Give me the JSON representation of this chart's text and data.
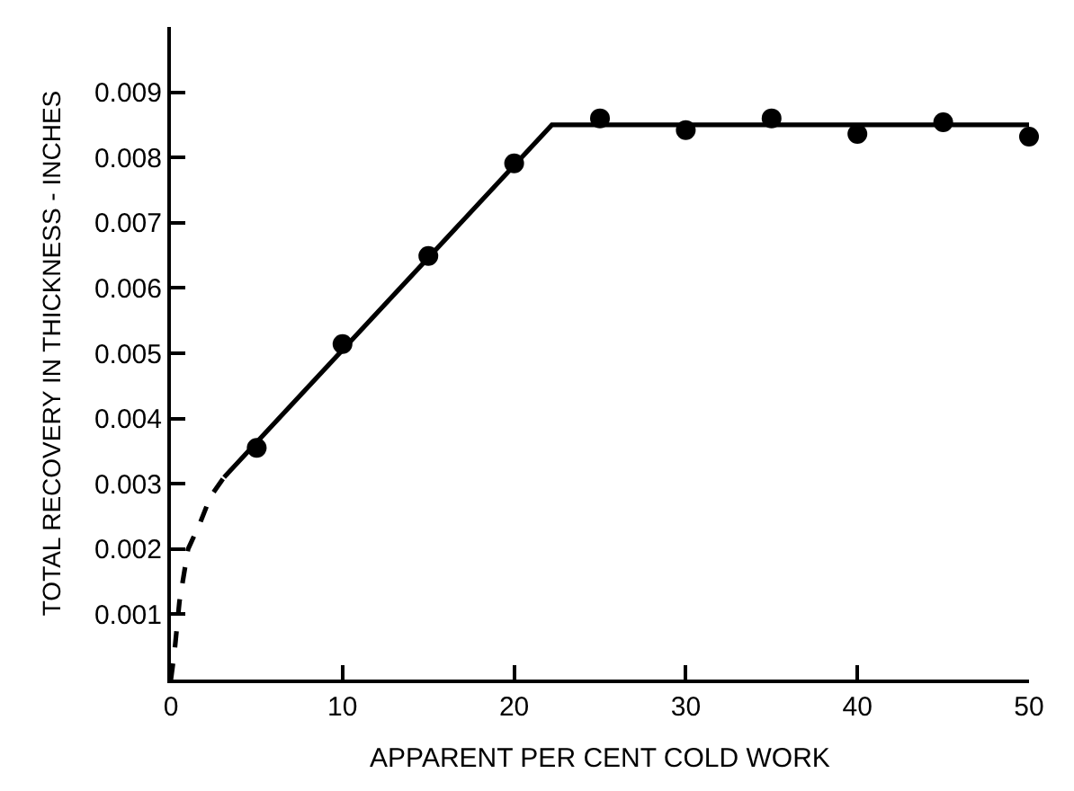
{
  "chart_data": {
    "type": "scatter",
    "xlabel": "APPARENT PER CENT COLD WORK",
    "ylabel": "TOTAL RECOVERY IN THICKNESS - INCHES",
    "xlim": [
      0,
      50
    ],
    "ylim": [
      0,
      0.01
    ],
    "xticks": [
      0,
      10,
      20,
      30,
      40,
      50
    ],
    "yticks": [
      0.001,
      0.002,
      0.003,
      0.004,
      0.005,
      0.006,
      0.007,
      0.008,
      0.009
    ],
    "series": [
      {
        "color": "#000000",
        "marker": "circle",
        "x": [
          5,
          10,
          15,
          20,
          25,
          30,
          35,
          40,
          45,
          50
        ],
        "values": [
          0.00355,
          0.00514,
          0.00649,
          0.00791,
          0.0086,
          0.00842,
          0.0086,
          0.00836,
          0.00854,
          0.00832
        ]
      },
      {
        "type": "line",
        "color": "#000000",
        "line_style": "solid",
        "marker": "none",
        "x": [
          3.1,
          22.2,
          50
        ],
        "values": [
          0.0031,
          0.0085,
          0.0085
        ]
      },
      {
        "type": "line",
        "color": "#000000",
        "line_style": "dashed",
        "marker": "none",
        "x": [
          0,
          0.2,
          0.5,
          1.0,
          1.7,
          2.3,
          3.1
        ],
        "values": [
          0,
          0.0004,
          0.0012,
          0.002,
          0.0024,
          0.0028,
          0.0031
        ]
      }
    ]
  }
}
